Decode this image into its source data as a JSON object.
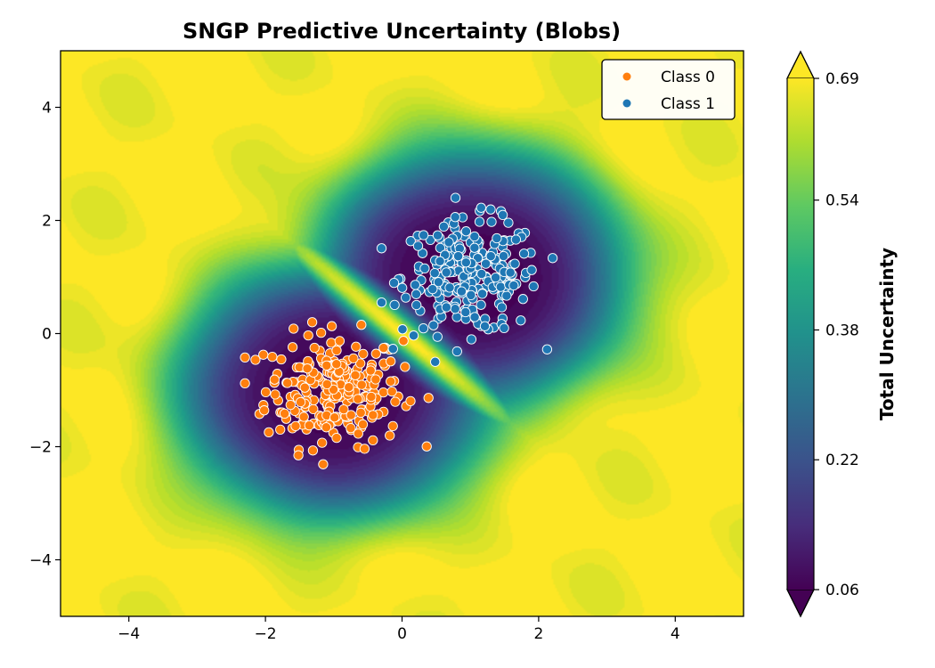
{
  "chart_data": {
    "type": "scatter",
    "title": "SNGP Predictive Uncertainty (Blobs)",
    "xlabel": "",
    "ylabel": "",
    "xlim": [
      -5,
      5
    ],
    "ylim": [
      -5,
      5
    ],
    "x_ticks": [
      -4,
      -2,
      0,
      2,
      4
    ],
    "y_ticks": [
      -4,
      -2,
      0,
      2,
      4
    ],
    "x_tick_labels": [
      "−4",
      "−2",
      "0",
      "2",
      "4"
    ],
    "y_tick_labels": [
      "−4",
      "−2",
      "0",
      "2",
      "4"
    ],
    "grid": false,
    "legend_placement": "top-right",
    "background": {
      "type": "filled-contour",
      "colormap": "viridis",
      "quantity": "Total Uncertainty",
      "description_of_field": "low uncertainty over each blob, high along the boundary between classes and far from the data"
    },
    "colorbar": {
      "label": "Total Uncertainty",
      "min": 0.06,
      "max": 0.69,
      "ticks": [
        0.06,
        0.22,
        0.38,
        0.54,
        0.69
      ],
      "tick_labels": [
        "0.06",
        "0.22",
        "0.38",
        "0.54",
        "0.69"
      ],
      "extend": "both"
    },
    "series": [
      {
        "name": "Class 0",
        "color": "#ff7f0e",
        "center": [
          -1.0,
          -1.0
        ],
        "spread": 0.5,
        "n_points": 250,
        "x_range_approx": [
          -2.3,
          0.4
        ],
        "y_range_approx": [
          -2.4,
          0.2
        ]
      },
      {
        "name": "Class 1",
        "color": "#1f77b4",
        "center": [
          1.0,
          1.0
        ],
        "spread": 0.5,
        "n_points": 250,
        "x_range_approx": [
          -0.3,
          2.3
        ],
        "y_range_approx": [
          -0.5,
          2.4
        ]
      }
    ]
  }
}
